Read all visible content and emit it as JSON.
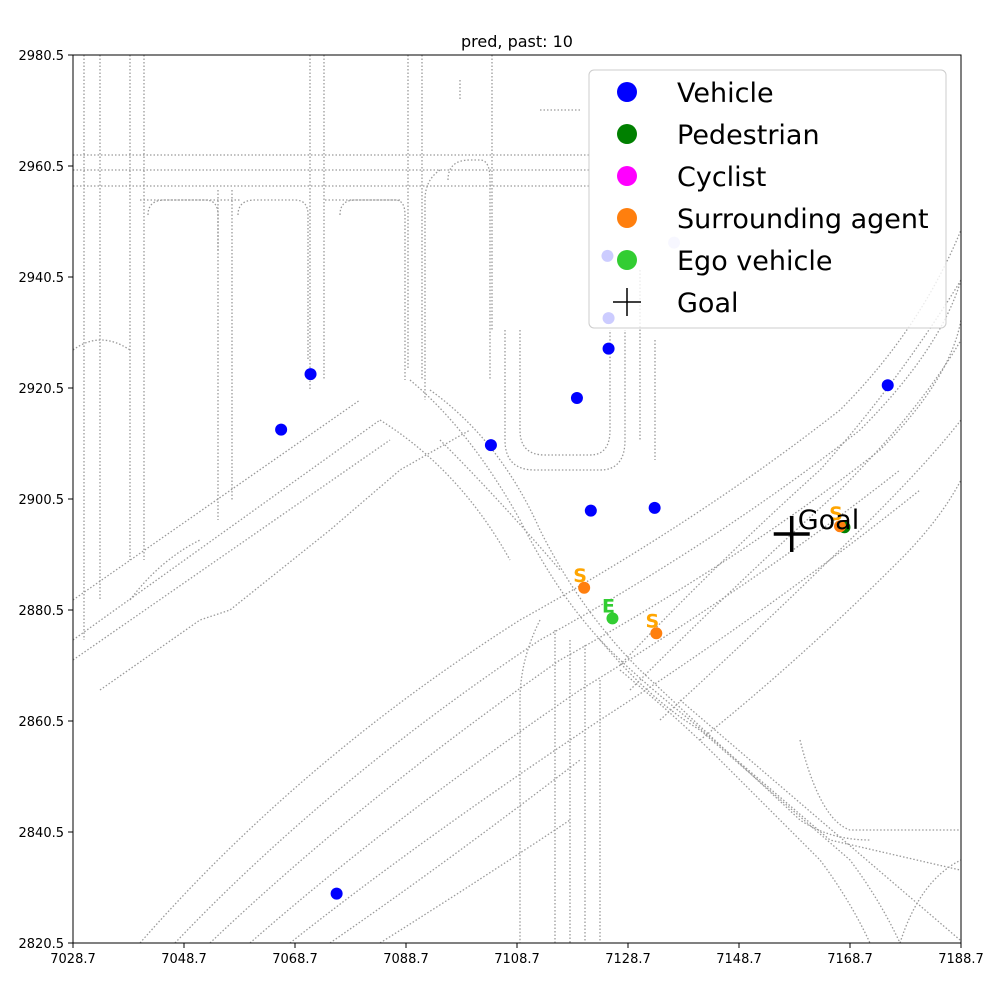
{
  "chart_data": {
    "type": "scatter",
    "title": "pred, past: 10",
    "xlim": [
      7028.7,
      7188.7
    ],
    "ylim": [
      2820.5,
      2980.5
    ],
    "xticks": [
      "7028.7",
      "7048.7",
      "7068.7",
      "7088.7",
      "7108.7",
      "7128.7",
      "7148.7",
      "7168.7",
      "7188.7"
    ],
    "yticks": [
      "2820.5",
      "2840.5",
      "2860.5",
      "2880.5",
      "2900.5",
      "2920.5",
      "2940.5",
      "2960.5",
      "2980.5"
    ],
    "grid": false,
    "legend_position": "top-right",
    "legend": [
      {
        "label": "Vehicle",
        "color": "#0000ff",
        "marker": "circle"
      },
      {
        "label": "Pedestrian",
        "color": "#008000",
        "marker": "circle"
      },
      {
        "label": "Cyclist",
        "color": "#ff00ff",
        "marker": "circle"
      },
      {
        "label": "Surrounding agent",
        "color": "#ff7f0e",
        "marker": "circle"
      },
      {
        "label": "Ego vehicle",
        "color": "#32cd32",
        "marker": "circle"
      },
      {
        "label": "Goal",
        "color": "#000000",
        "marker": "plus"
      }
    ],
    "series": [
      {
        "name": "Vehicle",
        "color": "#0000ff",
        "points": [
          [
            7066.2,
            2913.0
          ],
          [
            7071.5,
            2923.0
          ],
          [
            7104.0,
            2910.2
          ],
          [
            7119.5,
            2918.7
          ],
          [
            7125.0,
            2944.3
          ],
          [
            7125.2,
            2933.1
          ],
          [
            7125.2,
            2927.6
          ],
          [
            7122.0,
            2898.4
          ],
          [
            7133.5,
            2898.9
          ],
          [
            7175.5,
            2921.0
          ],
          [
            7076.2,
            2829.4
          ]
        ]
      },
      {
        "name": "Vehicle (faded)",
        "color": "#d8d8ff",
        "points": [
          [
            7137.0,
            2946.7
          ]
        ]
      },
      {
        "name": "Pedestrian",
        "color": "#008000",
        "points": [
          [
            7167.7,
            2895.4
          ]
        ]
      },
      {
        "name": "Surrounding agent",
        "color": "#ff7f0e",
        "points": [
          [
            7120.8,
            2884.5
          ],
          [
            7133.8,
            2876.3
          ],
          [
            7166.9,
            2895.6
          ]
        ],
        "letters": [
          "S",
          "S",
          "S"
        ]
      },
      {
        "name": "Ego vehicle",
        "color": "#32cd32",
        "points": [
          [
            7125.9,
            2879.0
          ]
        ],
        "letters": [
          "E"
        ]
      }
    ],
    "goal": {
      "x": 7158.2,
      "y": 2894.2,
      "label": "Goal"
    }
  }
}
